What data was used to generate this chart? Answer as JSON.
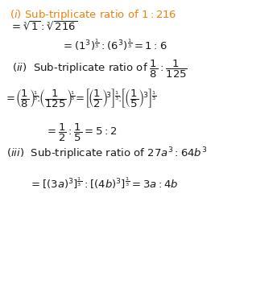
{
  "figsize": [
    3.44,
    3.53
  ],
  "dpi": 100,
  "bg_color": "#ffffff",
  "orange_color": "#e8820c",
  "black_color": "#1a1a1a"
}
